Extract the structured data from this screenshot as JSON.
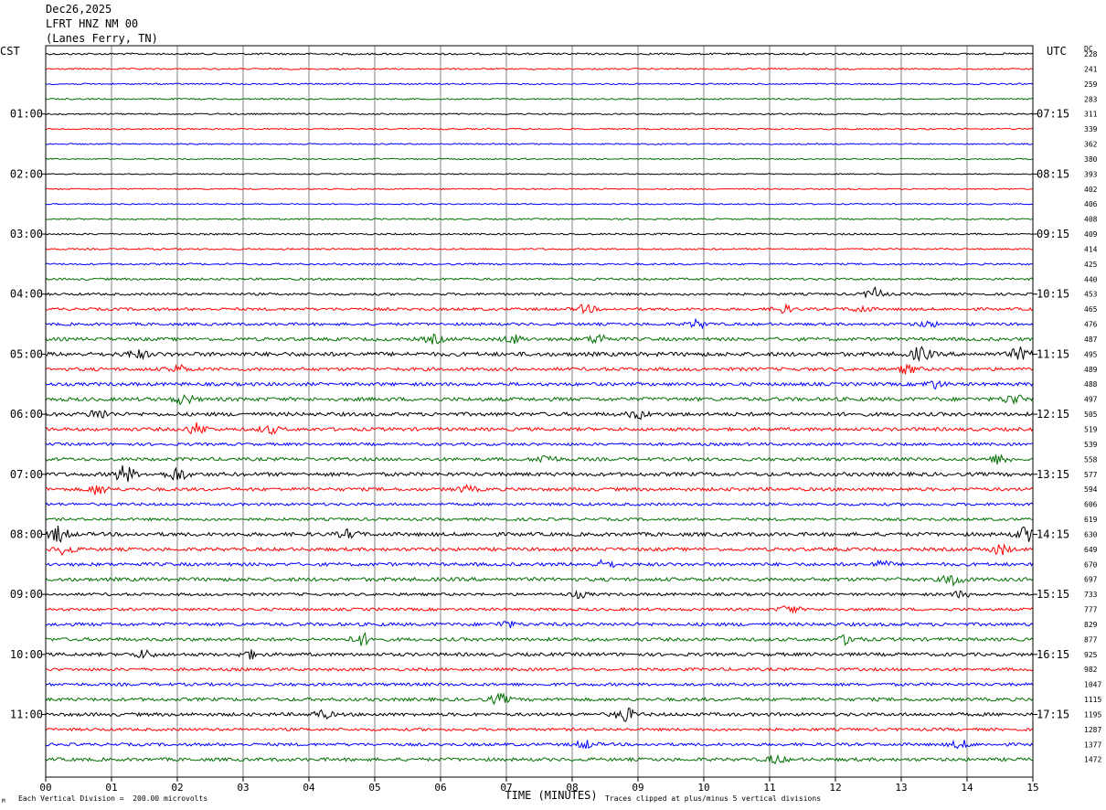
{
  "header": {
    "date": "Dec26,2025",
    "station": "LFRT HNZ NM 00",
    "location": "(Lanes Ferry, TN)"
  },
  "axis_labels": {
    "left_tz": "CST",
    "right_tz": "UTC",
    "dc_header": "DC",
    "xlabel": "TIME (MINUTES)",
    "scale_note": "Each Vertical Division =  200.00 microvolts",
    "clip_note": "Traces clipped at plus/minus 5 vertical divisions",
    "corner_mark": "M"
  },
  "chart_data": {
    "type": "line",
    "title": "",
    "xlabel": "TIME (MINUTES)",
    "x_ticks": [
      "00",
      "01",
      "02",
      "03",
      "04",
      "05",
      "06",
      "07",
      "08",
      "09",
      "10",
      "11",
      "12",
      "13",
      "14",
      "15"
    ],
    "xlim": [
      0,
      15
    ],
    "trace_count": 48,
    "trace_colors": [
      "#000000",
      "#ff0000",
      "#0000ff",
      "#007000"
    ],
    "left_hour_labels": [
      {
        "trace": 4,
        "label": "01:00"
      },
      {
        "trace": 8,
        "label": "02:00"
      },
      {
        "trace": 12,
        "label": "03:00"
      },
      {
        "trace": 16,
        "label": "04:00"
      },
      {
        "trace": 20,
        "label": "05:00"
      },
      {
        "trace": 24,
        "label": "06:00"
      },
      {
        "trace": 28,
        "label": "07:00"
      },
      {
        "trace": 32,
        "label": "08:00"
      },
      {
        "trace": 36,
        "label": "09:00"
      },
      {
        "trace": 40,
        "label": "10:00"
      },
      {
        "trace": 44,
        "label": "11:00"
      }
    ],
    "right_hour_labels": [
      {
        "trace": 4,
        "label": "07:15"
      },
      {
        "trace": 8,
        "label": "08:15"
      },
      {
        "trace": 12,
        "label": "09:15"
      },
      {
        "trace": 16,
        "label": "10:15"
      },
      {
        "trace": 20,
        "label": "11:15"
      },
      {
        "trace": 24,
        "label": "12:15"
      },
      {
        "trace": 28,
        "label": "13:15"
      },
      {
        "trace": 32,
        "label": "14:15"
      },
      {
        "trace": 36,
        "label": "15:15"
      },
      {
        "trace": 40,
        "label": "16:15"
      },
      {
        "trace": 44,
        "label": "17:15"
      }
    ],
    "dc_values": [
      "228",
      "241",
      "259",
      "283",
      "311",
      "339",
      "362",
      "380",
      "393",
      "402",
      "406",
      "408",
      "409",
      "414",
      "425",
      "440",
      "453",
      "465",
      "476",
      "487",
      "495",
      "489",
      "488",
      "497",
      "505",
      "519",
      "539",
      "558",
      "577",
      "594",
      "606",
      "619",
      "630",
      "649",
      "670",
      "697",
      "733",
      "777",
      "829",
      "877",
      "925",
      "982",
      "1047",
      "1115",
      "1195",
      "1287",
      "1377",
      "1472"
    ],
    "noise_levels": [
      1,
      0.8,
      0.8,
      0.8,
      0.8,
      0.8,
      0.7,
      0.7,
      0.6,
      0.7,
      0.7,
      0.8,
      0.9,
      0.9,
      1,
      1.2,
      1.3,
      1.5,
      1.5,
      1.8,
      2.2,
      1.8,
      1.8,
      2,
      2,
      1.8,
      1.5,
      1.8,
      2,
      1.8,
      1.5,
      1.5,
      2,
      1.8,
      1.8,
      2,
      1.5,
      1.5,
      1.8,
      1.8,
      1.8,
      1.6,
      1.6,
      1.8,
      1.8,
      1.5,
      1.6,
      1.8
    ],
    "bursts": [
      {
        "trace": 16,
        "minute": 12.6,
        "amp": 6
      },
      {
        "trace": 17,
        "minute": 8.2,
        "amp": 4
      },
      {
        "trace": 17,
        "minute": 11.2,
        "amp": 4
      },
      {
        "trace": 17,
        "minute": 12.4,
        "amp": 3
      },
      {
        "trace": 18,
        "minute": 9.9,
        "amp": 4
      },
      {
        "trace": 18,
        "minute": 13.4,
        "amp": 3
      },
      {
        "trace": 19,
        "minute": 5.9,
        "amp": 4
      },
      {
        "trace": 19,
        "minute": 7.1,
        "amp": 4
      },
      {
        "trace": 19,
        "minute": 8.4,
        "amp": 5
      },
      {
        "trace": 20,
        "minute": 1.4,
        "amp": 4
      },
      {
        "trace": 20,
        "minute": 13.3,
        "amp": 7
      },
      {
        "trace": 20,
        "minute": 14.8,
        "amp": 6
      },
      {
        "trace": 21,
        "minute": 2.0,
        "amp": 4
      },
      {
        "trace": 21,
        "minute": 13.1,
        "amp": 4
      },
      {
        "trace": 22,
        "minute": 13.5,
        "amp": 4
      },
      {
        "trace": 23,
        "minute": 2.1,
        "amp": 5
      },
      {
        "trace": 23,
        "minute": 14.7,
        "amp": 5
      },
      {
        "trace": 24,
        "minute": 0.8,
        "amp": 5
      },
      {
        "trace": 24,
        "minute": 9.0,
        "amp": 4
      },
      {
        "trace": 25,
        "minute": 2.3,
        "amp": 6
      },
      {
        "trace": 25,
        "minute": 3.4,
        "amp": 4
      },
      {
        "trace": 27,
        "minute": 7.6,
        "amp": 5
      },
      {
        "trace": 27,
        "minute": 14.5,
        "amp": 5
      },
      {
        "trace": 28,
        "minute": 1.2,
        "amp": 9
      },
      {
        "trace": 28,
        "minute": 2.0,
        "amp": 7
      },
      {
        "trace": 29,
        "minute": 0.8,
        "amp": 5
      },
      {
        "trace": 29,
        "minute": 6.4,
        "amp": 3
      },
      {
        "trace": 32,
        "minute": 0.2,
        "amp": 8
      },
      {
        "trace": 32,
        "minute": 14.9,
        "amp": 7
      },
      {
        "trace": 32,
        "minute": 4.6,
        "amp": 4
      },
      {
        "trace": 33,
        "minute": 0.3,
        "amp": 5
      },
      {
        "trace": 33,
        "minute": 14.5,
        "amp": 5
      },
      {
        "trace": 34,
        "minute": 8.5,
        "amp": 4
      },
      {
        "trace": 34,
        "minute": 12.7,
        "amp": 3
      },
      {
        "trace": 35,
        "minute": 13.8,
        "amp": 6
      },
      {
        "trace": 36,
        "minute": 8.1,
        "amp": 3
      },
      {
        "trace": 36,
        "minute": 13.9,
        "amp": 3
      },
      {
        "trace": 37,
        "minute": 11.3,
        "amp": 4
      },
      {
        "trace": 38,
        "minute": 7.0,
        "amp": 3
      },
      {
        "trace": 39,
        "minute": 4.8,
        "amp": 6
      },
      {
        "trace": 39,
        "minute": 12.2,
        "amp": 5
      },
      {
        "trace": 40,
        "minute": 1.5,
        "amp": 4
      },
      {
        "trace": 40,
        "minute": 3.1,
        "amp": 4
      },
      {
        "trace": 43,
        "minute": 6.9,
        "amp": 5
      },
      {
        "trace": 44,
        "minute": 8.8,
        "amp": 7
      },
      {
        "trace": 44,
        "minute": 4.2,
        "amp": 4
      },
      {
        "trace": 46,
        "minute": 8.2,
        "amp": 4
      },
      {
        "trace": 46,
        "minute": 13.9,
        "amp": 4
      },
      {
        "trace": 47,
        "minute": 11.1,
        "amp": 4
      }
    ]
  }
}
